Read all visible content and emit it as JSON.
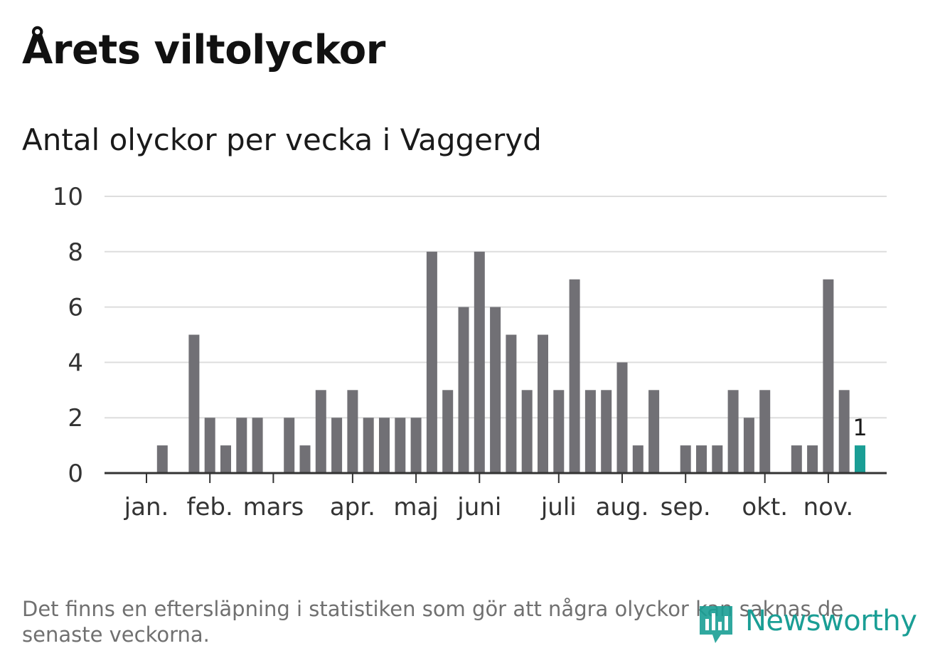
{
  "title": "Årets viltolyckor",
  "subtitle": "Antal olyckor per vecka i Vaggeryd",
  "footnote": "Det finns en eftersläpning i statistiken som gör att några olyckor kan saknas de senaste veckorna.",
  "brand": {
    "name": "Newsworthy",
    "icon": "newsworthy-logo-icon"
  },
  "colors": {
    "bar": "#717075",
    "highlight": "#1a9e95",
    "grid": "#dddddd",
    "axis": "#333333",
    "brand": "#1a9e95"
  },
  "chart_data": {
    "type": "bar",
    "title": "Antal olyckor per vecka i Vaggeryd",
    "xlabel": "",
    "ylabel": "",
    "ylim": [
      0,
      10
    ],
    "yticks": [
      0,
      2,
      4,
      6,
      8,
      10
    ],
    "grid": true,
    "weeks": [
      1,
      2,
      3,
      4,
      5,
      6,
      7,
      8,
      9,
      10,
      11,
      12,
      13,
      14,
      15,
      16,
      17,
      18,
      19,
      20,
      21,
      22,
      23,
      24,
      25,
      26,
      27,
      28,
      29,
      30,
      31,
      32,
      33,
      34,
      35,
      36,
      37,
      38,
      39,
      40,
      41,
      42,
      43,
      44,
      45,
      46
    ],
    "values": [
      0,
      1,
      0,
      5,
      2,
      1,
      2,
      2,
      0,
      2,
      1,
      3,
      2,
      3,
      2,
      2,
      2,
      2,
      8,
      3,
      6,
      8,
      6,
      5,
      3,
      5,
      3,
      7,
      3,
      3,
      4,
      1,
      3,
      0,
      1,
      1,
      1,
      3,
      2,
      3,
      0,
      1,
      1,
      7,
      3,
      1
    ],
    "highlight_last": true,
    "highlight_label": "1",
    "month_ticks": [
      {
        "label": "jan.",
        "week": 1
      },
      {
        "label": "feb.",
        "week": 5
      },
      {
        "label": "mars",
        "week": 9
      },
      {
        "label": "apr.",
        "week": 14
      },
      {
        "label": "maj",
        "week": 18
      },
      {
        "label": "juni",
        "week": 22
      },
      {
        "label": "juli",
        "week": 27
      },
      {
        "label": "aug.",
        "week": 31
      },
      {
        "label": "sep.",
        "week": 35
      },
      {
        "label": "okt.",
        "week": 40
      },
      {
        "label": "nov.",
        "week": 44
      }
    ]
  }
}
